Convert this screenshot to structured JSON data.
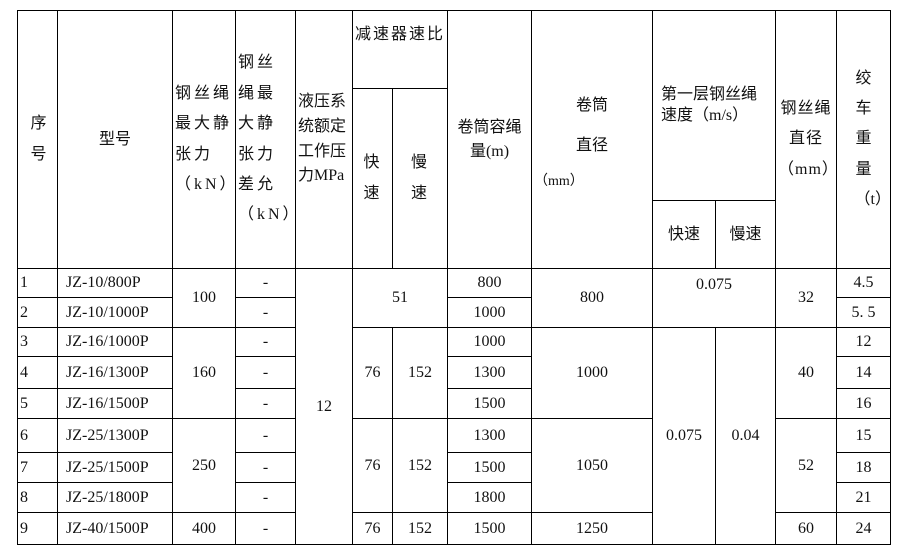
{
  "headers": {
    "seq": "序号",
    "model": "型号",
    "max_static_tension": "钢丝绳最大静张力（kN）",
    "max_static_tension_diff": "钢丝绳最大静张力差允（kN）",
    "hydraulic_pressure": "液压系统额定工作压力MPa",
    "reducer_ratio": "减速器速比",
    "reducer_fast": "快速",
    "reducer_slow": "慢速",
    "drum_capacity": "卷筒容绳量(m)",
    "drum_diameter": "卷筒直径",
    "drum_diameter_unit": "（mm）",
    "first_layer_speed": "第一层钢丝绳速度（m/s）",
    "speed_fast": "快速",
    "speed_slow": "慢速",
    "rope_diameter": "钢丝绳直径（mm）",
    "winch_weight": "绞车重量（t）"
  },
  "rows": [
    {
      "seq": "1",
      "model": "JZ-10/800P",
      "diff": "-",
      "capacity": "800",
      "weight": "4.5"
    },
    {
      "seq": "2",
      "model": "JZ-10/1000P",
      "diff": "-",
      "capacity": "1000",
      "weight": "5. 5"
    },
    {
      "seq": "3",
      "model": "JZ-16/1000P",
      "diff": "-",
      "capacity": "1000",
      "weight": "12"
    },
    {
      "seq": "4",
      "model": "JZ-16/1300P",
      "diff": "-",
      "capacity": "1300",
      "weight": "14"
    },
    {
      "seq": "5",
      "model": "JZ-16/1500P",
      "diff": "-",
      "capacity": "1500",
      "weight": "16"
    },
    {
      "seq": "6",
      "model": "JZ-25/1300P",
      "diff": "-",
      "capacity": "1300",
      "weight": "15"
    },
    {
      "seq": "7",
      "model": "JZ-25/1500P",
      "diff": "-",
      "capacity": "1500",
      "weight": "18"
    },
    {
      "seq": "8",
      "model": "JZ-25/1800P",
      "diff": "-",
      "capacity": "1800",
      "weight": "21"
    },
    {
      "seq": "9",
      "model": "JZ-40/1500P",
      "diff": "-",
      "capacity": "1500",
      "weight": "24"
    }
  ],
  "merged": {
    "tension_g1": "100",
    "tension_g2": "160",
    "tension_g3": "250",
    "tension_g4": "400",
    "pressure": "12",
    "ratio_g1": "51",
    "ratio_g2_fast": "76",
    "ratio_g2_slow": "152",
    "ratio_g3_fast": "76",
    "ratio_g3_slow": "152",
    "ratio_g4_fast": "76",
    "ratio_g4_slow": "152",
    "drum_g1": "800",
    "drum_g2": "1000",
    "drum_g3": "1050",
    "drum_g4": "1250",
    "speed_g1": "0.075",
    "speed_fast_g2": "0.075",
    "speed_slow_g2": "0.04",
    "rope_g1": "32",
    "rope_g2": "40",
    "rope_g3": "52",
    "rope_g4": "60"
  }
}
